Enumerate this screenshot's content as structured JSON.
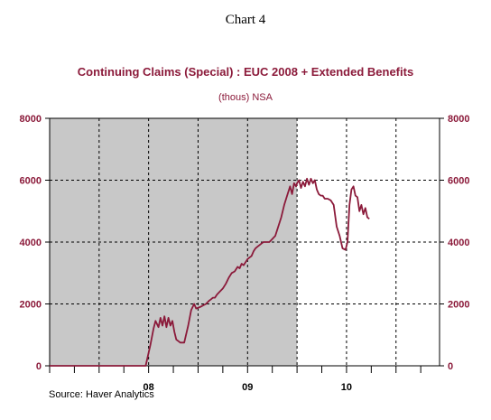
{
  "chart_label": "Chart 4",
  "chart_data": {
    "type": "line",
    "title": "Continuing Claims (Special) :  EUC 2008 + Extended Benefits",
    "subtitle": "(thous)   NSA",
    "source": "Source: Haver Analytics",
    "ylim": [
      0,
      8000
    ],
    "yticks": [
      0,
      2000,
      4000,
      6000,
      8000
    ],
    "xlim": [
      2007.0,
      2010.94
    ],
    "xticks": [
      {
        "label": "08",
        "x": 2008.0
      },
      {
        "label": "09",
        "x": 2009.0
      },
      {
        "label": "10",
        "x": 2010.0
      }
    ],
    "grid": true,
    "recession_shading": [
      2007.0,
      2009.5
    ],
    "line_color": "#8b1a3a",
    "series": [
      {
        "x": [
          2007.0,
          2007.5,
          2007.97,
          2008.02,
          2008.05,
          2008.07,
          2008.1,
          2008.12,
          2008.14,
          2008.16,
          2008.18,
          2008.2,
          2008.22,
          2008.24,
          2008.26,
          2008.28,
          2008.3,
          2008.32,
          2008.34,
          2008.36,
          2008.4,
          2008.43,
          2008.46,
          2008.48,
          2008.52,
          2008.55,
          2008.58,
          2008.61,
          2008.63,
          2008.65,
          2008.67,
          2008.69,
          2008.72,
          2008.75,
          2008.78,
          2008.81,
          2008.84,
          2008.87,
          2008.9,
          2008.92,
          2008.94,
          2008.96,
          2008.98,
          2009.0,
          2009.02,
          2009.04,
          2009.06,
          2009.08,
          2009.1,
          2009.12,
          2009.14,
          2009.16,
          2009.18,
          2009.2,
          2009.22,
          2009.25,
          2009.28,
          2009.31,
          2009.34,
          2009.37,
          2009.4,
          2009.43,
          2009.45,
          2009.47,
          2009.49,
          2009.5,
          2009.52,
          2009.54,
          2009.56,
          2009.58,
          2009.6,
          2009.62,
          2009.64,
          2009.66,
          2009.68,
          2009.7,
          2009.72,
          2009.74,
          2009.76,
          2009.78,
          2009.81,
          2009.84,
          2009.87,
          2009.9,
          2009.93,
          2009.96,
          2009.99,
          2010.01,
          2010.03,
          2010.05,
          2010.07,
          2010.09,
          2010.11,
          2010.13,
          2010.15,
          2010.17,
          2010.19,
          2010.21,
          2010.23
        ],
        "y": [
          0,
          0,
          0,
          700,
          1200,
          1450,
          1250,
          1550,
          1300,
          1600,
          1250,
          1550,
          1300,
          1450,
          1100,
          850,
          800,
          750,
          750,
          750,
          1300,
          1800,
          2000,
          1850,
          1900,
          1950,
          2000,
          2100,
          2150,
          2200,
          2200,
          2300,
          2400,
          2500,
          2650,
          2850,
          3000,
          3050,
          3200,
          3150,
          3300,
          3250,
          3350,
          3450,
          3500,
          3550,
          3700,
          3800,
          3850,
          3900,
          3950,
          4000,
          4000,
          4000,
          4000,
          4100,
          4200,
          4500,
          4800,
          5200,
          5500,
          5800,
          5550,
          5900,
          5800,
          5900,
          6000,
          5750,
          5950,
          5800,
          6050,
          5850,
          6050,
          5900,
          6000,
          5700,
          5550,
          5500,
          5500,
          5400,
          5400,
          5350,
          5200,
          4500,
          4200,
          3800,
          3750,
          4000,
          5200,
          5700,
          5800,
          5500,
          5450,
          5000,
          5200,
          4900,
          5100,
          4800,
          4750
        ]
      }
    ]
  }
}
